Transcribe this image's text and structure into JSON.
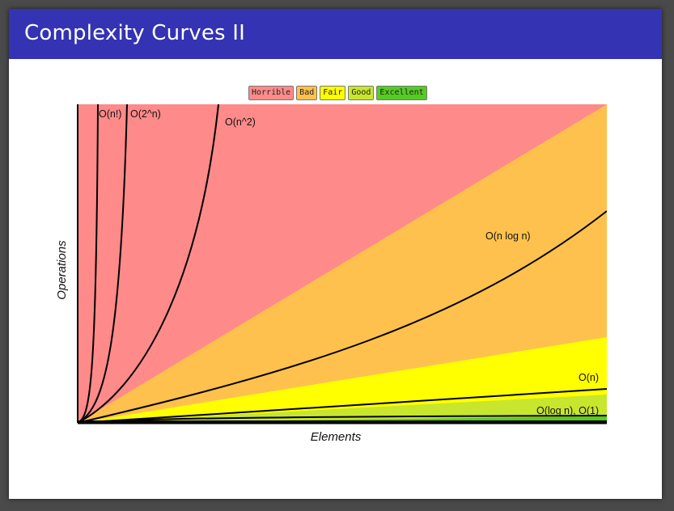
{
  "slide": {
    "title": "Complexity Curves II"
  },
  "legend": [
    {
      "label": "Horrible",
      "color": "#ff8a8a"
    },
    {
      "label": "Bad",
      "color": "#ffc14d"
    },
    {
      "label": "Fair",
      "color": "#ffff00"
    },
    {
      "label": "Good",
      "color": "#c8e62e"
    },
    {
      "label": "Excellent",
      "color": "#55cc22"
    }
  ],
  "chart": {
    "xlabel": "Elements",
    "ylabel": "Operations",
    "labels": {
      "factorial": "O(n!)",
      "exponential": "O(2^n)",
      "quadratic": "O(n^2)",
      "nlogn": "O(n log n)",
      "linear": "O(n)",
      "log_const": "O(log n), O(1)"
    }
  }
}
